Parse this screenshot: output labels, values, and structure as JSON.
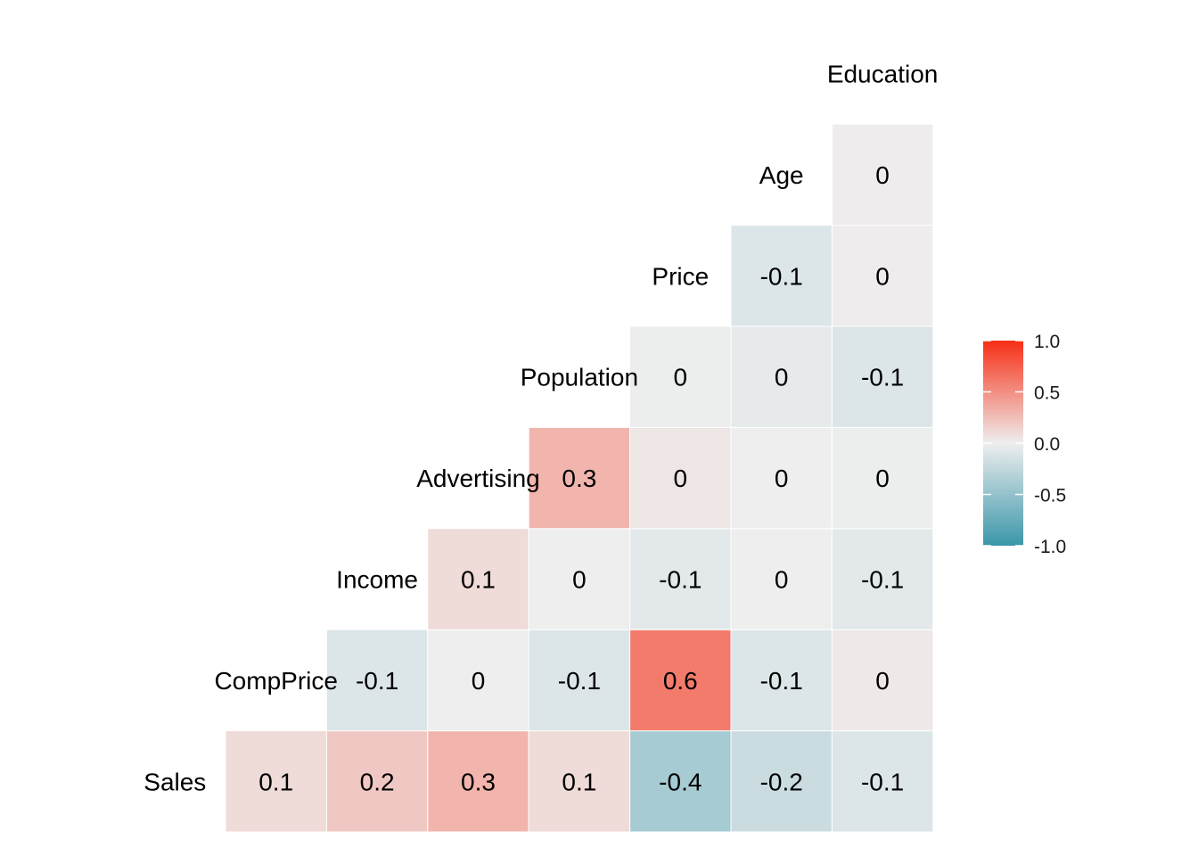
{
  "chart_data": {
    "type": "heatmap",
    "variables": [
      "Sales",
      "CompPrice",
      "Income",
      "Advertising",
      "Population",
      "Price",
      "Age",
      "Education"
    ],
    "cells": [
      {
        "row": "Sales",
        "col": "CompPrice",
        "value": 0.1,
        "label": "0.1"
      },
      {
        "row": "Sales",
        "col": "Income",
        "value": 0.2,
        "label": "0.2"
      },
      {
        "row": "Sales",
        "col": "Advertising",
        "value": 0.3,
        "label": "0.3"
      },
      {
        "row": "Sales",
        "col": "Population",
        "value": 0.1,
        "label": "0.1"
      },
      {
        "row": "Sales",
        "col": "Price",
        "value": -0.4,
        "label": "-0.4"
      },
      {
        "row": "Sales",
        "col": "Age",
        "value": -0.2,
        "label": "-0.2"
      },
      {
        "row": "Sales",
        "col": "Education",
        "value": -0.1,
        "label": "-0.1"
      },
      {
        "row": "CompPrice",
        "col": "Income",
        "value": -0.1,
        "label": "-0.1"
      },
      {
        "row": "CompPrice",
        "col": "Advertising",
        "value": 0.0,
        "label": "0"
      },
      {
        "row": "CompPrice",
        "col": "Population",
        "value": -0.1,
        "label": "-0.1"
      },
      {
        "row": "CompPrice",
        "col": "Price",
        "value": 0.6,
        "label": "0.6"
      },
      {
        "row": "CompPrice",
        "col": "Age",
        "value": -0.1,
        "label": "-0.1"
      },
      {
        "row": "CompPrice",
        "col": "Education",
        "value": 0.03,
        "label": "0"
      },
      {
        "row": "Income",
        "col": "Advertising",
        "value": 0.1,
        "label": "0.1"
      },
      {
        "row": "Income",
        "col": "Population",
        "value": 0.0,
        "label": "0"
      },
      {
        "row": "Income",
        "col": "Price",
        "value": -0.06,
        "label": "-0.1"
      },
      {
        "row": "Income",
        "col": "Age",
        "value": 0.0,
        "label": "0"
      },
      {
        "row": "Income",
        "col": "Education",
        "value": -0.06,
        "label": "-0.1"
      },
      {
        "row": "Advertising",
        "col": "Population",
        "value": 0.3,
        "label": "0.3"
      },
      {
        "row": "Advertising",
        "col": "Price",
        "value": 0.04,
        "label": "0"
      },
      {
        "row": "Advertising",
        "col": "Age",
        "value": 0.0,
        "label": "0"
      },
      {
        "row": "Advertising",
        "col": "Education",
        "value": -0.01,
        "label": "0"
      },
      {
        "row": "Population",
        "col": "Price",
        "value": -0.01,
        "label": "0"
      },
      {
        "row": "Population",
        "col": "Age",
        "value": -0.04,
        "label": "0"
      },
      {
        "row": "Population",
        "col": "Education",
        "value": -0.1,
        "label": "-0.1"
      },
      {
        "row": "Price",
        "col": "Age",
        "value": -0.1,
        "label": "-0.1"
      },
      {
        "row": "Price",
        "col": "Education",
        "value": 0.01,
        "label": "0"
      },
      {
        "row": "Age",
        "col": "Education",
        "value": 0.01,
        "label": "0"
      }
    ],
    "color_scale": {
      "low": "#3a96a9",
      "mid": "#eeeeee",
      "high": "#f72f16",
      "limits": [
        -1.0,
        1.0
      ]
    },
    "legend": {
      "position": "right",
      "ticks": [
        "1.0",
        "0.5",
        "0.0",
        "-0.5",
        "-1.0"
      ],
      "tick_values": [
        1.0,
        0.5,
        0.0,
        -0.5,
        -1.0
      ]
    },
    "grid": false
  }
}
